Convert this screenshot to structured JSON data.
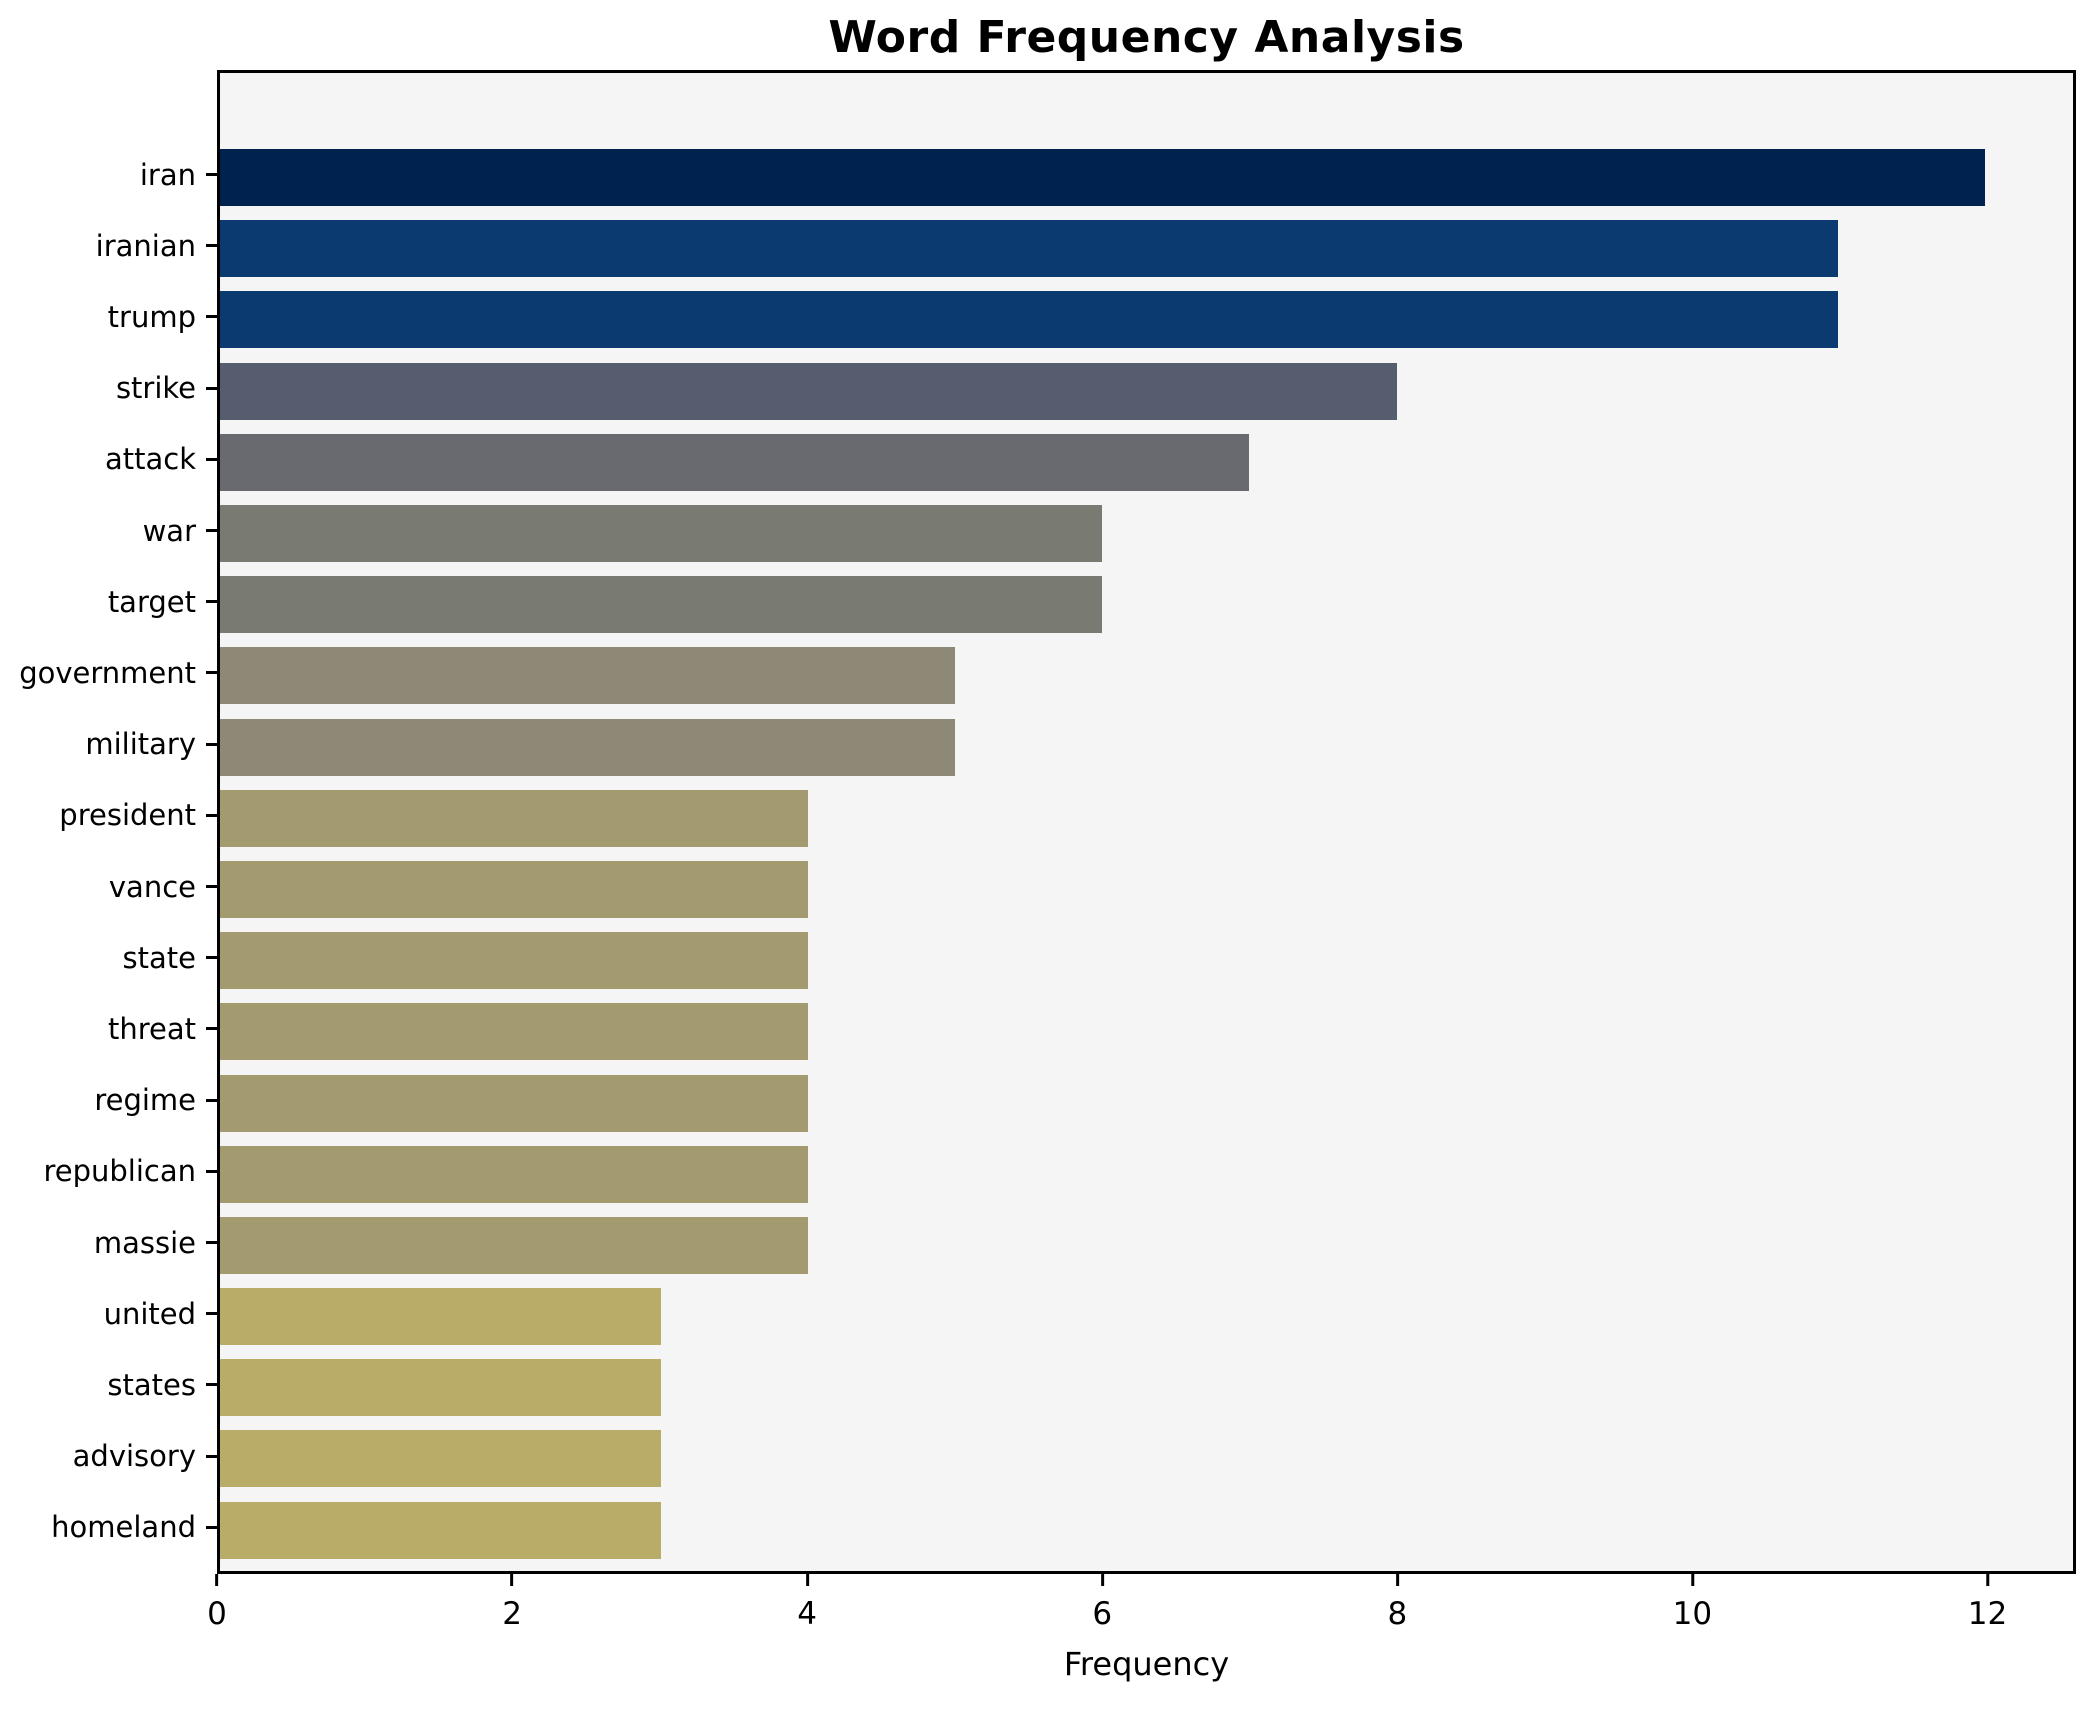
{
  "figure": {
    "background": "#ffffff"
  },
  "chart_data": {
    "type": "bar",
    "orientation": "horizontal",
    "title": "Word Frequency Analysis",
    "xlabel": "Frequency",
    "ylabel": "",
    "categories": [
      "iran",
      "iranian",
      "trump",
      "strike",
      "attack",
      "war",
      "target",
      "government",
      "military",
      "president",
      "vance",
      "state",
      "threat",
      "regime",
      "republican",
      "massie",
      "united",
      "states",
      "advisory",
      "homeland"
    ],
    "values": [
      12,
      11,
      11,
      8,
      7,
      6,
      6,
      5,
      5,
      4,
      4,
      4,
      4,
      4,
      4,
      4,
      3,
      3,
      3,
      3
    ],
    "bar_colors": [
      "#00224e",
      "#0b3a70",
      "#0b3a70",
      "#565d6e",
      "#686a6f",
      "#797a72",
      "#797a72",
      "#8e8977",
      "#8e8977",
      "#a39a6f",
      "#a39a6f",
      "#a39a6f",
      "#a39a6f",
      "#a39a6f",
      "#a39a6f",
      "#a39a6f",
      "#b9ab68",
      "#b9ab68",
      "#b9ab68",
      "#b9ab68"
    ],
    "xticks": [
      0,
      2,
      4,
      6,
      8,
      10,
      12
    ],
    "xlim": [
      0,
      12.6
    ],
    "plot_background": "#f5f5f6",
    "spine_color": "#000000",
    "grid": false,
    "legend_position": "none"
  }
}
